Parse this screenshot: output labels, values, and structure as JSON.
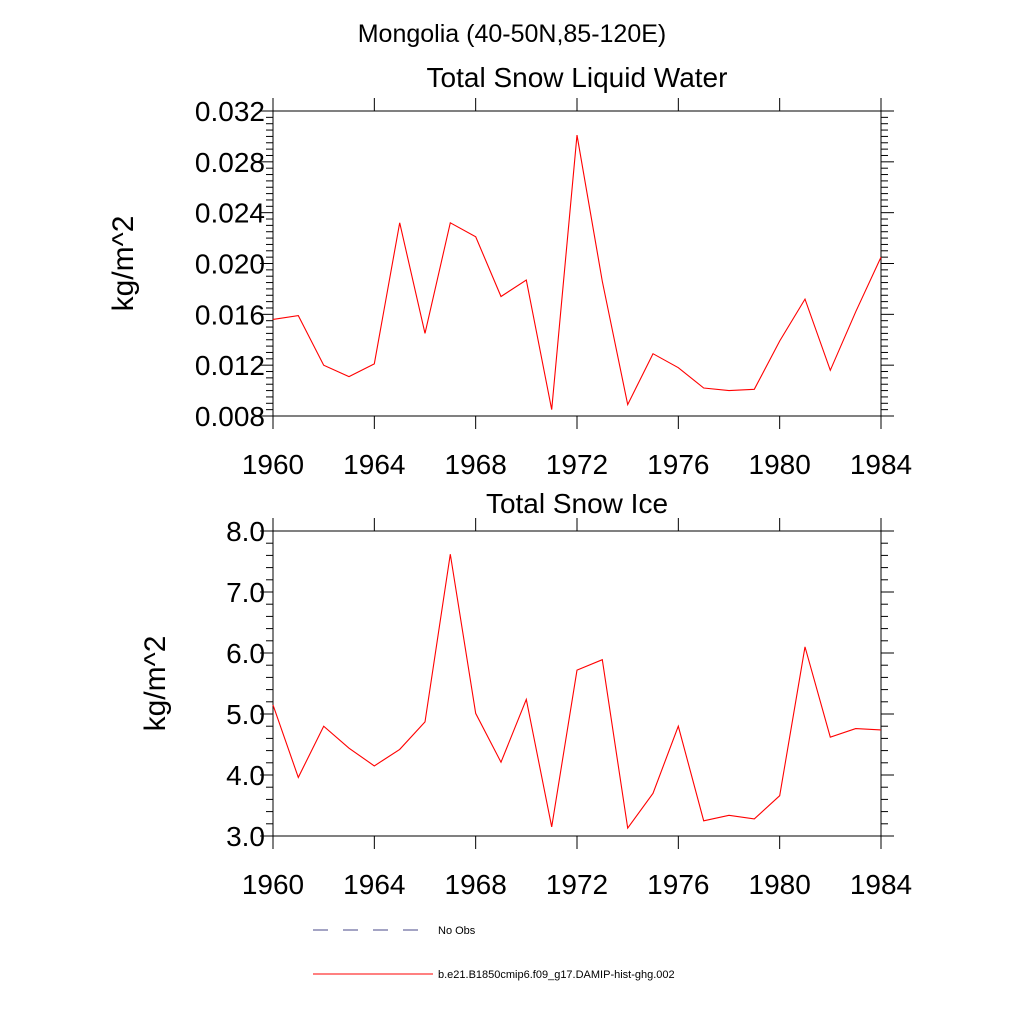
{
  "page_title": "Mongolia (40-50N,85-120E)",
  "colors": {
    "series": "#ff0000",
    "obs": "#4a4a8a",
    "axis": "#000000"
  },
  "legend": {
    "entries": [
      {
        "label": "No Obs",
        "style": "dashed",
        "color": "#4a4a8a"
      },
      {
        "label": "b.e21.B1850cmip6.f09_g17.DAMIP-hist-ghg.002",
        "style": "solid",
        "color": "#ff0000"
      }
    ]
  },
  "chart_data": [
    {
      "type": "line",
      "title": "Total Snow Liquid Water",
      "xlabel": "",
      "ylabel": "kg/m^2",
      "xlim": [
        1960,
        1984
      ],
      "ylim": [
        0.008,
        0.032
      ],
      "x_ticks": [
        "1960",
        "1964",
        "1968",
        "1972",
        "1976",
        "1980",
        "1984"
      ],
      "y_ticks": [
        "0.008",
        "0.012",
        "0.016",
        "0.020",
        "0.024",
        "0.028",
        "0.032"
      ],
      "series": [
        {
          "name": "b.e21.B1850cmip6.f09_g17.DAMIP-hist-ghg.002",
          "x": [
            1960,
            1961,
            1962,
            1963,
            1964,
            1965,
            1966,
            1967,
            1968,
            1969,
            1970,
            1971,
            1972,
            1973,
            1974,
            1975,
            1976,
            1977,
            1978,
            1979,
            1980,
            1981,
            1982,
            1983,
            1984
          ],
          "values": [
            0.0156,
            0.0159,
            0.012,
            0.0111,
            0.0121,
            0.0232,
            0.0145,
            0.0232,
            0.0221,
            0.0174,
            0.0187,
            0.0085,
            0.0301,
            0.0186,
            0.0089,
            0.0129,
            0.0118,
            0.0102,
            0.01,
            0.0101,
            0.0139,
            0.0172,
            0.0116,
            0.0162,
            0.0205
          ]
        }
      ]
    },
    {
      "type": "line",
      "title": "Total Snow Ice",
      "xlabel": "",
      "ylabel": "kg/m^2",
      "xlim": [
        1960,
        1984
      ],
      "ylim": [
        3.0,
        8.0
      ],
      "x_ticks": [
        "1960",
        "1964",
        "1968",
        "1972",
        "1976",
        "1980",
        "1984"
      ],
      "y_ticks": [
        "3.0",
        "4.0",
        "5.0",
        "6.0",
        "7.0",
        "8.0"
      ],
      "series": [
        {
          "name": "b.e21.B1850cmip6.f09_g17.DAMIP-hist-ghg.002",
          "x": [
            1960,
            1961,
            1962,
            1963,
            1964,
            1965,
            1966,
            1967,
            1968,
            1969,
            1970,
            1971,
            1972,
            1973,
            1974,
            1975,
            1976,
            1977,
            1978,
            1979,
            1980,
            1981,
            1982,
            1983,
            1984
          ],
          "values": [
            5.15,
            3.96,
            4.8,
            4.44,
            4.15,
            4.42,
            4.87,
            7.62,
            5.01,
            4.21,
            5.24,
            3.15,
            5.72,
            5.89,
            3.13,
            3.7,
            4.8,
            3.25,
            3.34,
            3.28,
            3.66,
            6.1,
            4.62,
            4.76,
            4.74
          ]
        }
      ]
    }
  ]
}
